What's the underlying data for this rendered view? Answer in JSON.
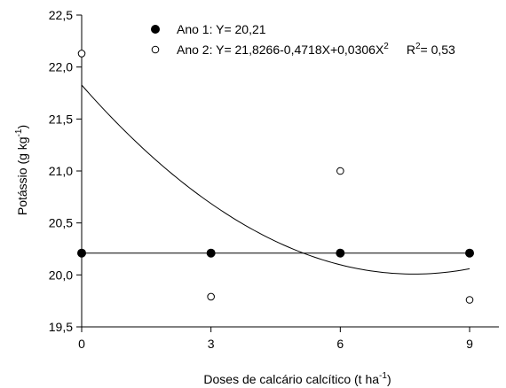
{
  "chart_data": {
    "type": "scatter",
    "xlabel": "Doses de calcário calcítico (t ha",
    "xlabel_sup": "-1",
    "xlabel_end": ")",
    "ylabel": "Potássio (g kg",
    "ylabel_sup": "-1",
    "ylabel_end": ")",
    "xlim": [
      0,
      9
    ],
    "ylim": [
      19.5,
      22.5
    ],
    "xticks": [
      0,
      3,
      6,
      9
    ],
    "xtick_labels": [
      "0",
      "3",
      "6",
      "9"
    ],
    "yticks": [
      19.5,
      20.0,
      20.5,
      21.0,
      21.5,
      22.0,
      22.5
    ],
    "ytick_labels": [
      "19,5",
      "20,0",
      "20,5",
      "21,0",
      "21,5",
      "22,0",
      "22,5"
    ],
    "grid": false,
    "legend_position": "top-left",
    "series": [
      {
        "name": "Ano 1",
        "marker": "filled-circle",
        "x": [
          0,
          3,
          6,
          9
        ],
        "y": [
          20.21,
          20.21,
          20.21,
          20.21
        ],
        "fit": {
          "kind": "constant",
          "value": 20.21
        },
        "legend_text": "Ano 1: Y= 20,21"
      },
      {
        "name": "Ano 2",
        "marker": "open-circle",
        "x": [
          0,
          3,
          6,
          9
        ],
        "y": [
          22.13,
          19.79,
          21.0,
          19.76
        ],
        "fit": {
          "kind": "quadratic",
          "a": 21.8266,
          "b": -0.4718,
          "c": 0.0306
        },
        "legend_text": "Ano 2: Y= 21,8266-0,4718X+0,0306X",
        "legend_sup": "2",
        "r2_text": "R",
        "r2_sup": "2",
        "r2_value": "= 0,53"
      }
    ]
  }
}
